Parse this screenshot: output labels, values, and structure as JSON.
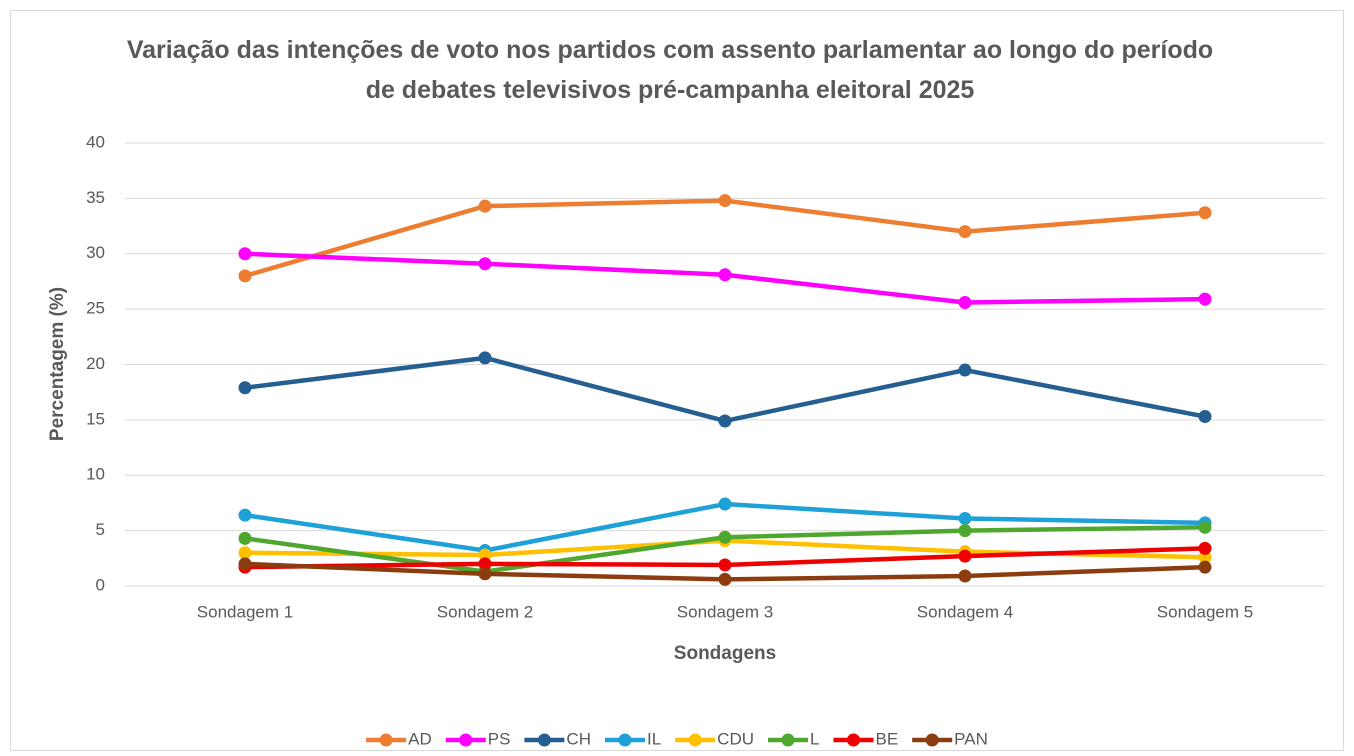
{
  "chart_data": {
    "type": "line",
    "title": "Variação das intenções de voto nos partidos com assento parlamentar ao longo do período de debates televisivos pré-campanha eleitoral 2025",
    "x_label": "Sondagens",
    "y_label": "Percentagem (%)",
    "categories": [
      "Sondagem 1",
      "Sondagem 2",
      "Sondagem 3",
      "Sondagem 4",
      "Sondagem 5"
    ],
    "series": [
      {
        "name": "AD",
        "color": "#ed7d31",
        "values": [
          28,
          34.3,
          34.8,
          32,
          33.7
        ]
      },
      {
        "name": "PS",
        "color": "#ff00ff",
        "values": [
          30,
          29.1,
          28.1,
          25.6,
          25.9
        ]
      },
      {
        "name": "CH",
        "color": "#255e91",
        "values": [
          17.9,
          20.6,
          14.9,
          19.5,
          15.3
        ]
      },
      {
        "name": "IL",
        "color": "#1ea1d6",
        "values": [
          6.4,
          3.2,
          7.4,
          6.1,
          5.7
        ]
      },
      {
        "name": "CDU",
        "color": "#ffc000",
        "values": [
          3.0,
          2.8,
          4.1,
          3.1,
          2.6
        ]
      },
      {
        "name": "L",
        "color": "#4ea72e",
        "values": [
          4.3,
          1.3,
          4.4,
          5.0,
          5.3
        ]
      },
      {
        "name": "BE",
        "color": "#ee0000",
        "values": [
          1.7,
          2.0,
          1.9,
          2.7,
          3.4
        ]
      },
      {
        "name": "PAN",
        "color": "#8b3d0f",
        "values": [
          2.0,
          1.1,
          0.6,
          0.9,
          1.7
        ]
      }
    ],
    "ylim": [
      0,
      40
    ],
    "yticks": [
      0,
      5,
      10,
      15,
      20,
      25,
      30,
      35,
      40
    ],
    "grid": true,
    "legend": "bottom"
  }
}
